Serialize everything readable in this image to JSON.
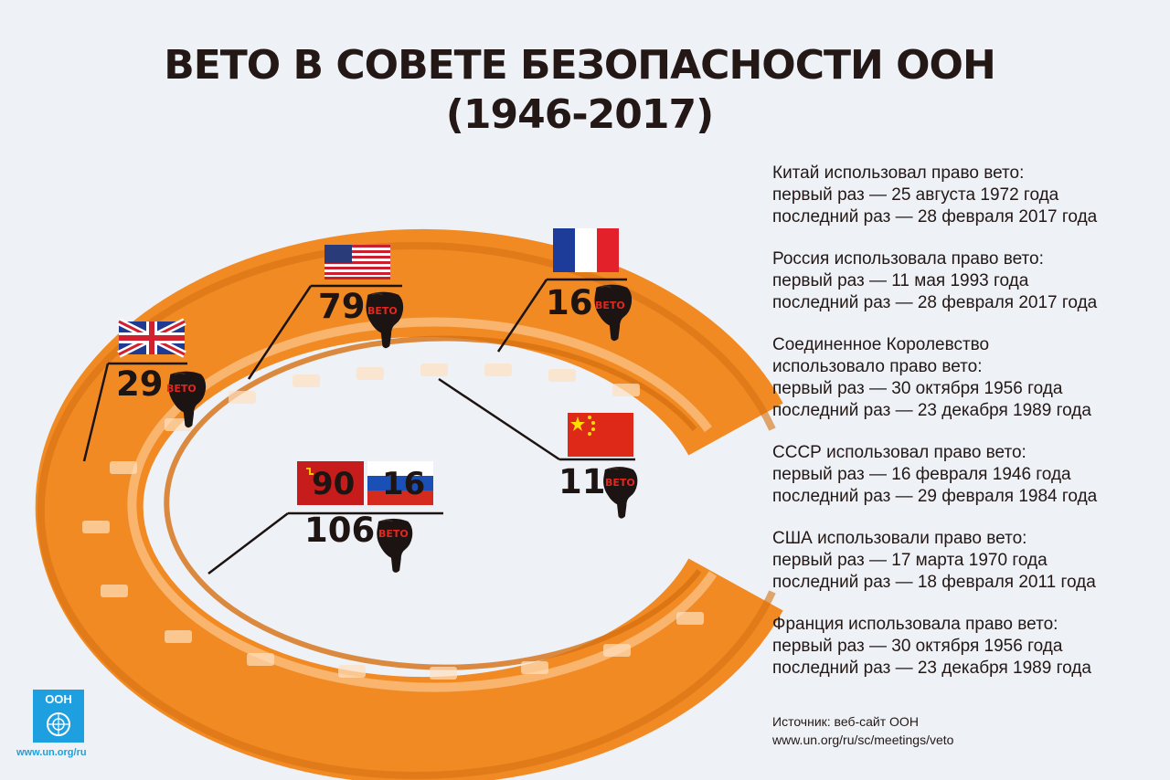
{
  "title": {
    "line1": "ВЕТО В СОВЕТЕ БЕЗОПАСНОСТИ ООН",
    "line2": "(1946-2017)"
  },
  "badge_text": "ВЕТО",
  "counts": {
    "uk": "29",
    "usa": "79",
    "france": "16",
    "china": "11",
    "ussr": "90",
    "russia": "16",
    "ussr_russia_total": "106"
  },
  "vetoes": [
    {
      "line1": "Китай использовал право вето:",
      "line2": "первый раз — 25 августа 1972 года",
      "line3": "последний раз — 28 февраля 2017 года"
    },
    {
      "line1": "Россия использовала право вето:",
      "line2": "первый раз — 11 мая 1993 года",
      "line3": "последний раз — 28 февраля 2017 года"
    },
    {
      "line1": "Соединенное Королевство",
      "line1b": "использовало право вето:",
      "line2": "первый раз — 30 октября 1956 года",
      "line3": "последний раз — 23 декабря 1989 года"
    },
    {
      "line1": "СССР использовал право вето:",
      "line2": "первый раз — 16 февраля 1946 года",
      "line3": "последний раз — 29 февраля 1984 года"
    },
    {
      "line1": "США использовали право вето:",
      "line2": "первый раз — 17 марта 1970 года",
      "line3": "последний раз — 18 февраля 2011 года"
    },
    {
      "line1": "Франция использовала право вето:",
      "line2": "первый раз — 30 октября 1956 года",
      "line3": "последний раз — 23 декабря 1989 года"
    }
  ],
  "source": {
    "label": "Источник: веб-сайт ООН",
    "url": "www.un.org/ru/sc/meetings/veto"
  },
  "logo": {
    "text": "ООН",
    "url": "www.un.org/ru"
  },
  "colors": {
    "table": "#f28a23",
    "table_dark": "#d66f10",
    "background": "#eef1f6",
    "ink": "#231816",
    "badge_red": "#e0281e",
    "un_blue": "#1ea0e0"
  }
}
